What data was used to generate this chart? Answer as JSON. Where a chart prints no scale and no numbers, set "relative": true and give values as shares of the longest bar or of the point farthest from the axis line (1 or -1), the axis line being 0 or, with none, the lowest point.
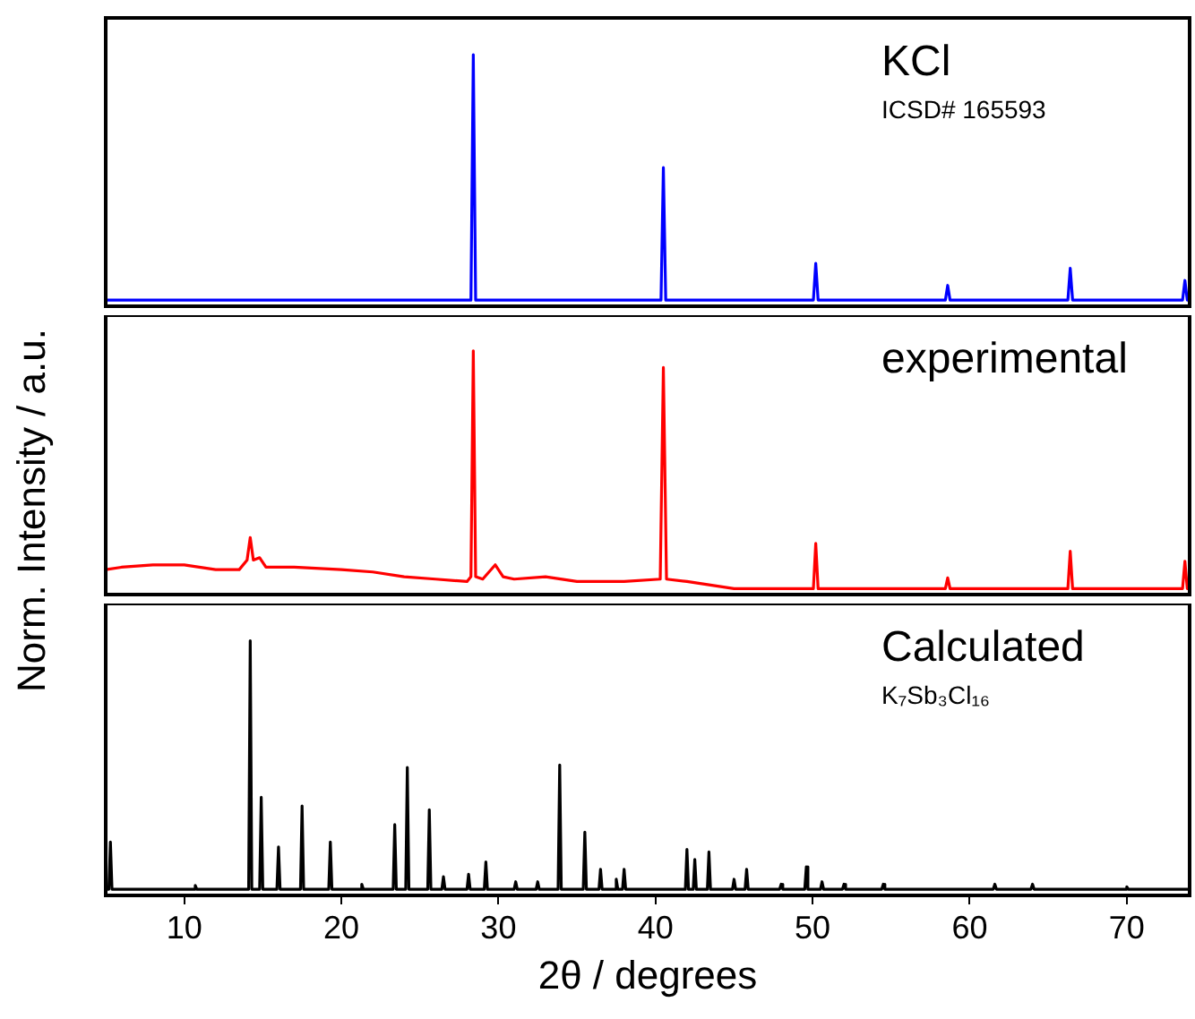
{
  "chart_data": [
    {
      "type": "line",
      "relative": true,
      "tick_labels": false,
      "xlim": [
        5,
        74
      ],
      "annotations": [
        "KCl",
        "ICSD# 165593"
      ],
      "series": [
        {
          "color": "#0000ff",
          "x": [
            5,
            28.25,
            28.4,
            28.55,
            40.35,
            40.5,
            40.65,
            50.05,
            50.2,
            50.35,
            58.45,
            58.6,
            58.75,
            66.25,
            66.4,
            66.55,
            73.55,
            73.7,
            73.85,
            74
          ],
          "values": [
            0,
            0,
            1,
            0,
            0,
            0.54,
            0,
            0,
            0.15,
            0,
            0,
            0.06,
            0,
            0,
            0.13,
            0,
            0,
            0.08,
            0,
            0
          ]
        }
      ]
    },
    {
      "type": "line",
      "relative": true,
      "tick_labels": false,
      "xlim": [
        5,
        74
      ],
      "ylabel": "Norm. Intensity / a.u.",
      "annotations": [
        "experimental"
      ],
      "series": [
        {
          "color": "#ff0000",
          "x": [
            5,
            6,
            8,
            10,
            12,
            13.5,
            14,
            14.2,
            14.4,
            14.8,
            15.2,
            17,
            20,
            22,
            24,
            26,
            28,
            28.25,
            28.4,
            28.55,
            29,
            29.8,
            30.3,
            31,
            33,
            35,
            38,
            40.3,
            40.5,
            40.7,
            42,
            45,
            50.05,
            50.2,
            50.35,
            55,
            58.45,
            58.6,
            58.75,
            66.25,
            66.4,
            66.55,
            73.55,
            73.7,
            73.85,
            74
          ],
          "values": [
            0.08,
            0.09,
            0.1,
            0.1,
            0.08,
            0.08,
            0.12,
            0.215,
            0.12,
            0.13,
            0.09,
            0.09,
            0.08,
            0.07,
            0.05,
            0.04,
            0.03,
            0.05,
            1,
            0.05,
            0.04,
            0.1,
            0.05,
            0.04,
            0.05,
            0.03,
            0.03,
            0.04,
            0.93,
            0.04,
            0.03,
            0,
            0,
            0.19,
            0,
            0,
            0,
            0.045,
            0,
            0,
            0.157,
            0,
            0,
            0.115,
            0,
            0
          ]
        }
      ]
    },
    {
      "type": "line",
      "relative": true,
      "tick_labels": "x",
      "xlim": [
        5,
        74
      ],
      "xticks": [
        10,
        20,
        30,
        40,
        50,
        60,
        70
      ],
      "xlabel": "2θ / degrees",
      "annotations": [
        "Calculated",
        "K₇Sb₃Cl₁₆"
      ],
      "series": [
        {
          "color": "#000000",
          "x": [
            5,
            5.2,
            5.3,
            5.4,
            10.6,
            10.7,
            10.8,
            14.1,
            14.2,
            14.3,
            14.8,
            14.9,
            15.0,
            15.9,
            16.0,
            16.1,
            17.4,
            17.5,
            17.6,
            19.2,
            19.3,
            19.4,
            21.2,
            21.3,
            21.4,
            23.3,
            23.4,
            23.5,
            24.1,
            24.2,
            24.3,
            25.5,
            25.6,
            25.7,
            26.4,
            26.5,
            26.6,
            28.0,
            28.1,
            28.2,
            29.1,
            29.2,
            29.3,
            31.0,
            31.1,
            31.2,
            32.4,
            32.5,
            32.6,
            33.8,
            33.9,
            34.0,
            35.4,
            35.5,
            35.6,
            36.4,
            36.5,
            36.6,
            37.4,
            37.5,
            37.6,
            37.9,
            38.0,
            38.1,
            41.9,
            42.0,
            42.1,
            42.4,
            42.5,
            42.6,
            43.3,
            43.4,
            43.5,
            44.9,
            45.0,
            45.1,
            45.7,
            45.8,
            45.9,
            47.9,
            48.0,
            48.1,
            49.5,
            49.6,
            49.7,
            50.5,
            50.6,
            50.7,
            51.9,
            52.0,
            52.1,
            54.4,
            54.5,
            54.6,
            61.5,
            61.6,
            61.7,
            63.9,
            64.0,
            64.1,
            69.9,
            70.0,
            70.1,
            74
          ],
          "values": [
            0,
            0,
            0.19,
            0,
            0,
            0.015,
            0,
            0,
            1,
            0,
            0,
            0.37,
            0,
            0,
            0.17,
            0,
            0,
            0.335,
            0,
            0,
            0.19,
            0,
            0,
            0.02,
            0,
            0,
            0.26,
            0,
            0,
            0.49,
            0,
            0,
            0.32,
            0,
            0,
            0.05,
            0,
            0,
            0.06,
            0,
            0,
            0.11,
            0,
            0,
            0.03,
            0,
            0,
            0.03,
            0,
            0,
            0.5,
            0,
            0,
            0.23,
            0,
            0,
            0.08,
            0,
            0,
            0.04,
            0,
            0,
            0.08,
            0,
            0,
            0.16,
            0,
            0,
            0.12,
            0,
            0,
            0.15,
            0,
            0,
            0.04,
            0,
            0,
            0.08,
            0,
            0,
            0.02,
            0,
            0,
            0.09,
            0,
            0,
            0.03,
            0,
            0,
            0.02,
            0,
            0,
            0.02,
            0,
            0,
            0.02,
            0,
            0,
            0.02,
            0,
            0,
            0.01,
            0,
            0
          ]
        }
      ]
    }
  ]
}
